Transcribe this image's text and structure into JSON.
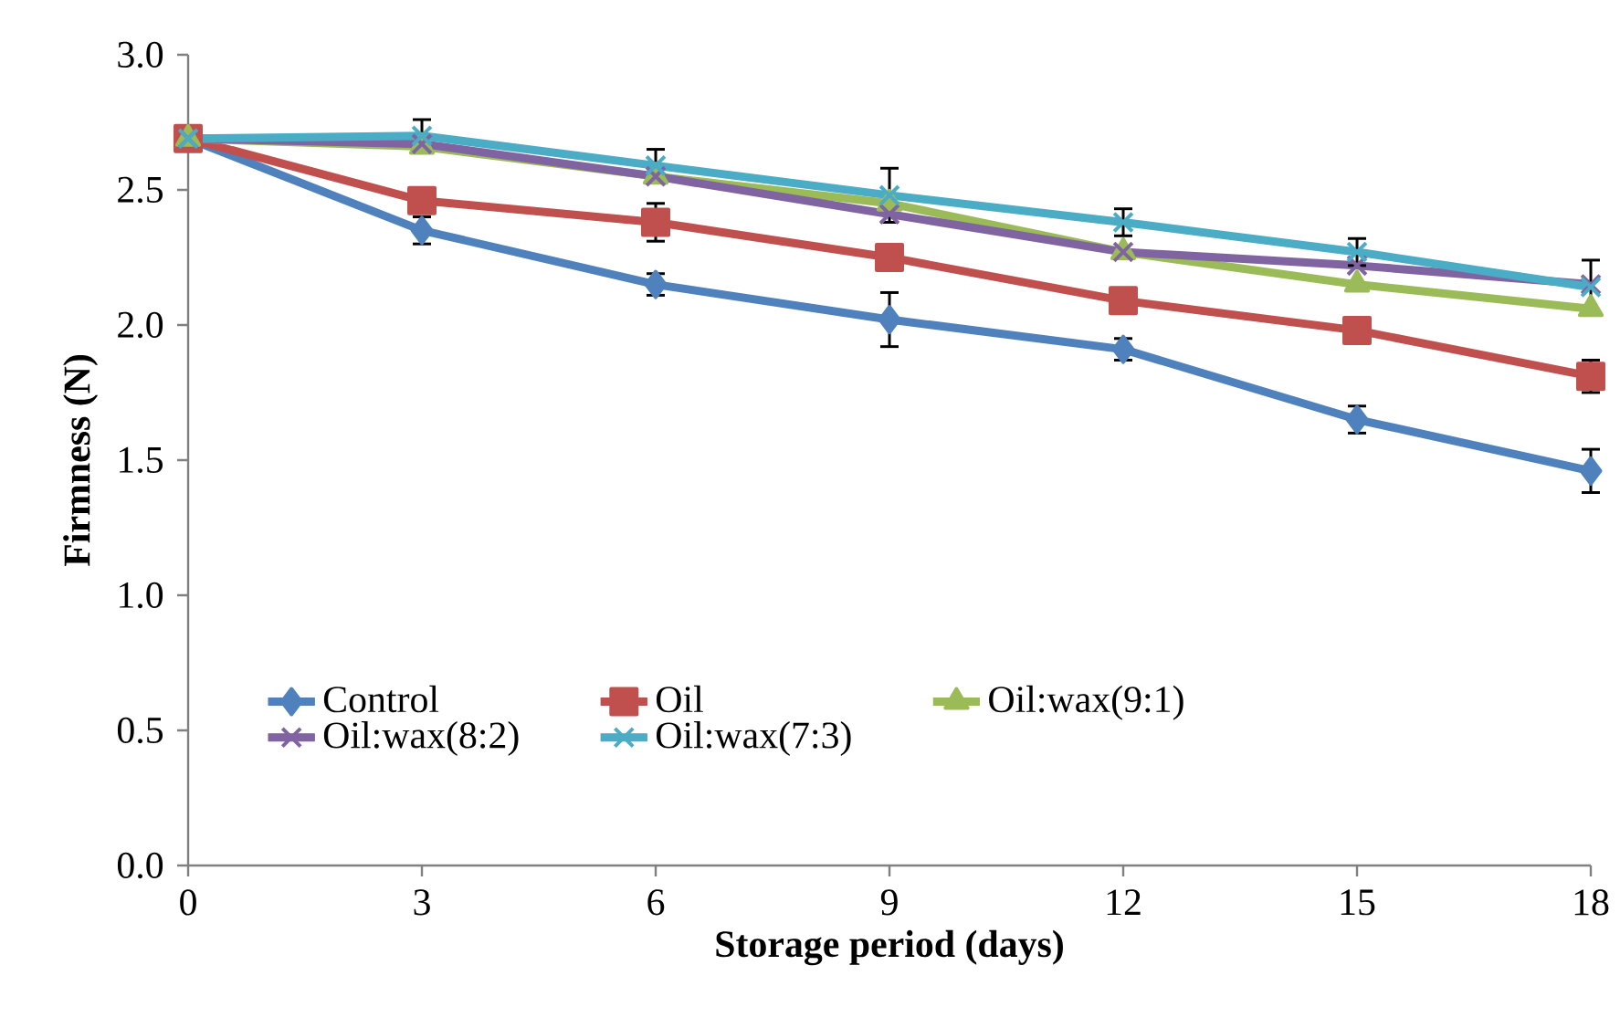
{
  "chart_data": {
    "type": "line",
    "xlabel": "Storage period (days)",
    "ylabel": "Firmness (N)",
    "x": [
      0,
      3,
      6,
      9,
      12,
      15,
      18
    ],
    "series": [
      {
        "name": "Control",
        "color": "#4f81bd",
        "marker": "diamond",
        "values": [
          2.69,
          2.35,
          2.15,
          2.02,
          1.91,
          1.65,
          1.46
        ],
        "errors": [
          null,
          0.05,
          0.04,
          0.1,
          0.04,
          0.05,
          0.08
        ]
      },
      {
        "name": "Oil",
        "color": "#c0504d",
        "marker": "square",
        "values": [
          2.69,
          2.46,
          2.38,
          2.25,
          2.09,
          1.98,
          1.81
        ],
        "errors": [
          null,
          null,
          0.07,
          null,
          null,
          null,
          0.06
        ]
      },
      {
        "name": "Oil:wax(9:1)",
        "color": "#9bbb59",
        "marker": "triangle",
        "values": [
          2.69,
          2.66,
          2.55,
          2.45,
          2.27,
          2.15,
          2.06
        ]
      },
      {
        "name": "Oil:wax(8:2)",
        "color": "#8064a2",
        "marker": "cross",
        "values": [
          2.69,
          2.67,
          2.55,
          2.41,
          2.27,
          2.22,
          2.15
        ]
      },
      {
        "name": "Oil:wax(7:3)",
        "color": "#4bacc6",
        "marker": "cross",
        "values": [
          2.69,
          2.7,
          2.59,
          2.48,
          2.38,
          2.27,
          2.14
        ],
        "errors": [
          null,
          0.06,
          0.06,
          0.1,
          0.05,
          0.05,
          0.1
        ]
      }
    ],
    "xlim": [
      0,
      18
    ],
    "xticks": [
      0,
      3,
      6,
      9,
      12,
      15,
      18
    ],
    "ylim": [
      0,
      3
    ],
    "yticks": [
      {
        "value": 0,
        "label": "0.0"
      },
      {
        "value": 0.5,
        "label": "0.5"
      },
      {
        "value": 1,
        "label": "1.0"
      },
      {
        "value": 1.5,
        "label": "1.5"
      },
      {
        "value": 2,
        "label": "2.0"
      },
      {
        "value": 2.5,
        "label": "2.5"
      },
      {
        "value": 3,
        "label": "3.0"
      }
    ],
    "grid": false,
    "legend": "bottom",
    "line_style": "solid"
  }
}
